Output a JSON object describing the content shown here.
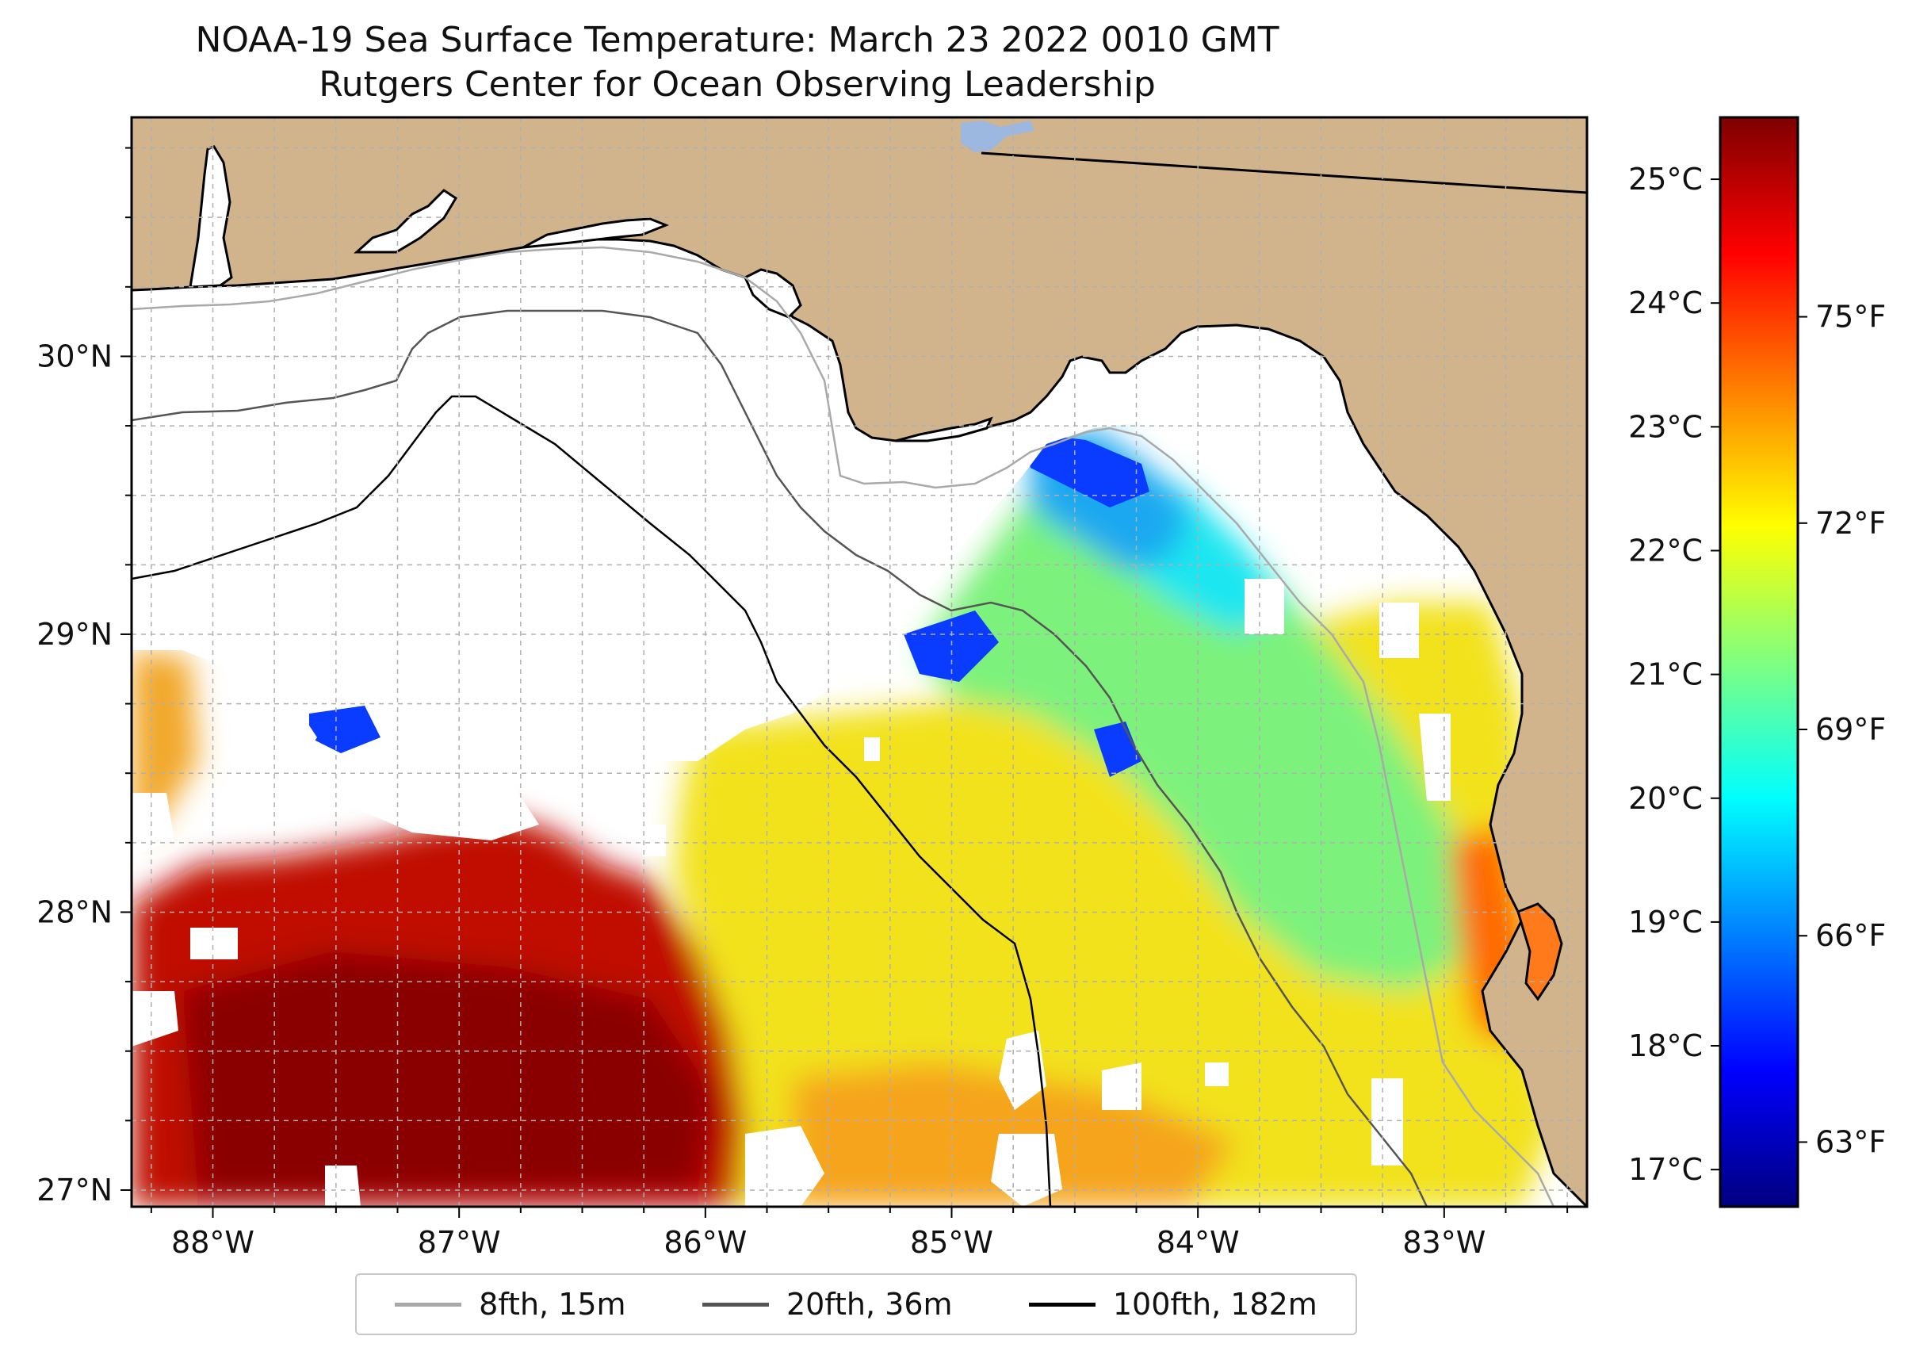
{
  "title": {
    "line1": "NOAA-19 Sea Surface Temperature: March 23 2022 0010 GMT",
    "line2": "Rutgers Center for Ocean Observing Leadership"
  },
  "axes": {
    "x_ticks": [
      {
        "lon": -88,
        "label": "88°W"
      },
      {
        "lon": -87,
        "label": "87°W"
      },
      {
        "lon": -86,
        "label": "86°W"
      },
      {
        "lon": -85,
        "label": "85°W"
      },
      {
        "lon": -84,
        "label": "84°W"
      },
      {
        "lon": -83,
        "label": "83°W"
      }
    ],
    "y_ticks": [
      {
        "lat": 27,
        "label": "27°N"
      },
      {
        "lat": 28,
        "label": "28°N"
      },
      {
        "lat": 29,
        "label": "29°N"
      },
      {
        "lat": 30,
        "label": "30°N"
      }
    ],
    "lon_range": [
      -88.33,
      -82.42
    ],
    "lat_range": [
      26.94,
      30.86
    ]
  },
  "colorbar": {
    "celsius_ticks": [
      {
        "value": 17,
        "label": "17°C"
      },
      {
        "value": 18,
        "label": "18°C"
      },
      {
        "value": 19,
        "label": "19°C"
      },
      {
        "value": 20,
        "label": "20°C"
      },
      {
        "value": 21,
        "label": "21°C"
      },
      {
        "value": 22,
        "label": "22°C"
      },
      {
        "value": 23,
        "label": "23°C"
      },
      {
        "value": 24,
        "label": "24°C"
      },
      {
        "value": 25,
        "label": "25°C"
      }
    ],
    "fahrenheit_ticks": [
      {
        "value": 63,
        "label": "63°F"
      },
      {
        "value": 66,
        "label": "66°F"
      },
      {
        "value": 69,
        "label": "69°F"
      },
      {
        "value": 72,
        "label": "72°F"
      },
      {
        "value": 75,
        "label": "75°F"
      }
    ],
    "range_c": [
      16.7,
      25.5
    ],
    "colormap": [
      "#00007f",
      "#0000ff",
      "#0080ff",
      "#00ffff",
      "#80ff80",
      "#ffff00",
      "#ff8000",
      "#ff0000",
      "#7f0000"
    ]
  },
  "legend": {
    "items": [
      {
        "label": "8fth, 15m",
        "color": "#a9a9a9"
      },
      {
        "label": "20fth, 36m",
        "color": "#555555"
      },
      {
        "label": "100fth, 182m",
        "color": "#000000"
      }
    ]
  },
  "colors": {
    "land": "#d2b48c",
    "lake": "#9db8e0",
    "frame": "#000000",
    "grid": "#b0b0b0"
  }
}
